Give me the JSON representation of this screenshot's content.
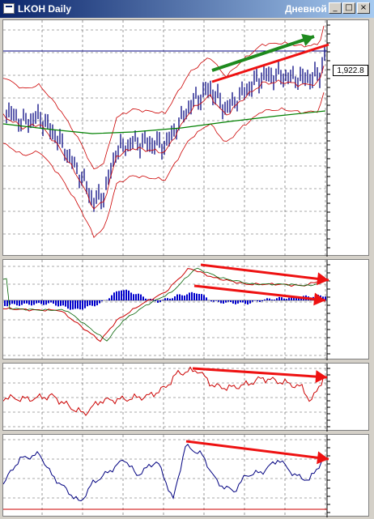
{
  "window": {
    "title": "LKOH Daily",
    "period_label": "Дневной",
    "min_glyph": "_",
    "max_glyph": "□",
    "close_glyph": "×"
  },
  "price_pane": {
    "last_price": "1,922.8"
  },
  "colors": {
    "candles": "#1a1a8c",
    "bands": "#cc0000",
    "ma": "#008000",
    "arrow_green": "#1e8a1e",
    "arrow_red": "#ee1111",
    "histogram": "#0000cc",
    "rsi": "#cc0000",
    "osc": "#000080"
  }
}
